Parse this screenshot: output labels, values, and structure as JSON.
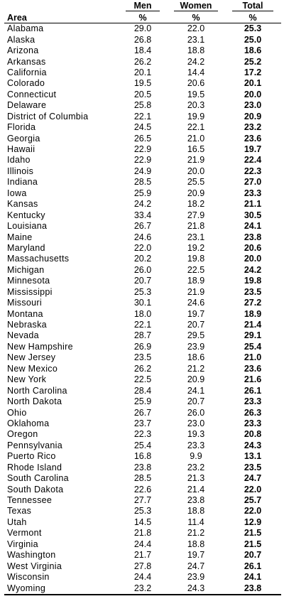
{
  "header": {
    "area_label": "Area",
    "men_label": "Men",
    "women_label": "Women",
    "total_label": "Total",
    "unit_men": "%",
    "unit_women": "%",
    "unit_total": "%"
  },
  "rows": [
    {
      "area": "Alabama",
      "men": "29.0",
      "women": "22.0",
      "total": "25.3"
    },
    {
      "area": "Alaska",
      "men": "26.8",
      "women": "23.1",
      "total": "25.0"
    },
    {
      "area": "Arizona",
      "men": "18.4",
      "women": "18.8",
      "total": "18.6"
    },
    {
      "area": "Arkansas",
      "men": "26.2",
      "women": "24.2",
      "total": "25.2"
    },
    {
      "area": "California",
      "men": "20.1",
      "women": "14.4",
      "total": "17.2"
    },
    {
      "area": "Colorado",
      "men": "19.5",
      "women": "20.6",
      "total": "20.1"
    },
    {
      "area": "Connecticut",
      "men": "20.5",
      "women": "19.5",
      "total": "20.0"
    },
    {
      "area": "Delaware",
      "men": "25.8",
      "women": "20.3",
      "total": "23.0"
    },
    {
      "area": "District of Columbia",
      "men": "22.1",
      "women": "19.9",
      "total": "20.9"
    },
    {
      "area": "Florida",
      "men": "24.5",
      "women": "22.1",
      "total": "23.2"
    },
    {
      "area": "Georgia",
      "men": "26.5",
      "women": "21.0",
      "total": "23.6"
    },
    {
      "area": "Hawaii",
      "men": "22.9",
      "women": "16.5",
      "total": "19.7"
    },
    {
      "area": "Idaho",
      "men": "22.9",
      "women": "21.9",
      "total": "22.4"
    },
    {
      "area": "Illinois",
      "men": "24.9",
      "women": "20.0",
      "total": "22.3"
    },
    {
      "area": "Indiana",
      "men": "28.5",
      "women": "25.5",
      "total": "27.0"
    },
    {
      "area": "Iowa",
      "men": "25.9",
      "women": "20.9",
      "total": "23.3"
    },
    {
      "area": "Kansas",
      "men": "24.2",
      "women": "18.2",
      "total": "21.1"
    },
    {
      "area": "Kentucky",
      "men": "33.4",
      "women": "27.9",
      "total": "30.5"
    },
    {
      "area": "Louisiana",
      "men": "26.7",
      "women": "21.8",
      "total": "24.1"
    },
    {
      "area": "Maine",
      "men": "24.6",
      "women": "23.1",
      "total": "23.8"
    },
    {
      "area": "Maryland",
      "men": "22.0",
      "women": "19.2",
      "total": "20.6"
    },
    {
      "area": "Massachusetts",
      "men": "20.2",
      "women": "19.8",
      "total": "20.0"
    },
    {
      "area": "Michigan",
      "men": "26.0",
      "women": "22.5",
      "total": "24.2"
    },
    {
      "area": "Minnesota",
      "men": "20.7",
      "women": "18.9",
      "total": "19.8"
    },
    {
      "area": "Mississippi",
      "men": "25.3",
      "women": "21.9",
      "total": "23.5"
    },
    {
      "area": "Missouri",
      "men": "30.1",
      "women": "24.6",
      "total": "27.2"
    },
    {
      "area": "Montana",
      "men": "18.0",
      "women": "19.7",
      "total": "18.9"
    },
    {
      "area": "Nebraska",
      "men": "22.1",
      "women": "20.7",
      "total": "21.4"
    },
    {
      "area": "Nevada",
      "men": "28.7",
      "women": "29.5",
      "total": "29.1"
    },
    {
      "area": "New Hampshire",
      "men": "26.9",
      "women": "23.9",
      "total": "25.4"
    },
    {
      "area": "New Jersey",
      "men": "23.5",
      "women": "18.6",
      "total": "21.0"
    },
    {
      "area": "New Mexico",
      "men": "26.2",
      "women": "21.2",
      "total": "23.6"
    },
    {
      "area": "New York",
      "men": "22.5",
      "women": "20.9",
      "total": "21.6"
    },
    {
      "area": "North Carolina",
      "men": "28.4",
      "women": "24.1",
      "total": "26.1"
    },
    {
      "area": "North Dakota",
      "men": "25.9",
      "women": "20.7",
      "total": "23.3"
    },
    {
      "area": "Ohio",
      "men": "26.7",
      "women": "26.0",
      "total": "26.3"
    },
    {
      "area": "Oklahoma",
      "men": "23.7",
      "women": "23.0",
      "total": "23.3"
    },
    {
      "area": "Oregon",
      "men": "22.3",
      "women": "19.3",
      "total": "20.8"
    },
    {
      "area": "Pennsylvania",
      "men": "25.4",
      "women": "23.3",
      "total": "24.3"
    },
    {
      "area": "Puerto Rico",
      "men": "16.8",
      "women": "9.9",
      "total": "13.1"
    },
    {
      "area": "Rhode Island",
      "men": "23.8",
      "women": "23.2",
      "total": "23.5"
    },
    {
      "area": "South Carolina",
      "men": "28.5",
      "women": "21.3",
      "total": "24.7"
    },
    {
      "area": "South Dakota",
      "men": "22.6",
      "women": "21.4",
      "total": "22.0"
    },
    {
      "area": "Tennessee",
      "men": "27.7",
      "women": "23.8",
      "total": "25.7"
    },
    {
      "area": "Texas",
      "men": "25.3",
      "women": "18.8",
      "total": "22.0"
    },
    {
      "area": "Utah",
      "men": "14.5",
      "women": "11.4",
      "total": "12.9"
    },
    {
      "area": "Vermont",
      "men": "21.8",
      "women": "21.2",
      "total": "21.5"
    },
    {
      "area": "Virginia",
      "men": "24.4",
      "women": "18.8",
      "total": "21.5"
    },
    {
      "area": "Washington",
      "men": "21.7",
      "women": "19.7",
      "total": "20.7"
    },
    {
      "area": "West Virginia",
      "men": "27.8",
      "women": "24.7",
      "total": "26.1"
    },
    {
      "area": "Wisconsin",
      "men": "24.4",
      "women": "23.9",
      "total": "24.1"
    },
    {
      "area": "Wyoming",
      "men": "23.2",
      "women": "24.3",
      "total": "23.8"
    }
  ]
}
